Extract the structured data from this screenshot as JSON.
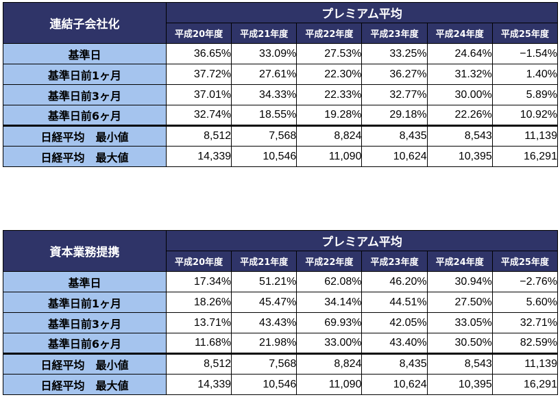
{
  "tables": [
    {
      "corner_label": "連結子会社化",
      "group_header": "プレミアム平均",
      "years": [
        "平成20年度",
        "平成21年度",
        "平成22年度",
        "平成23年度",
        "平成24年度",
        "平成25年度"
      ],
      "rows": [
        {
          "label": "基準日",
          "values": [
            "36.65%",
            "33.09%",
            "27.53%",
            "33.25%",
            "24.64%",
            "−1.54%"
          ]
        },
        {
          "label": "基準日前1ヶ月",
          "values": [
            "37.72%",
            "27.61%",
            "22.30%",
            "36.27%",
            "31.32%",
            "1.40%"
          ]
        },
        {
          "label": "基準日前3ヶ月",
          "values": [
            "37.01%",
            "34.33%",
            "22.33%",
            "32.77%",
            "30.00%",
            "5.89%"
          ]
        },
        {
          "label": "基準日前6ヶ月",
          "values": [
            "32.74%",
            "18.55%",
            "19.28%",
            "29.18%",
            "22.26%",
            "10.92%"
          ]
        },
        {
          "label": "日経平均　最小値",
          "values": [
            "8,512",
            "7,568",
            "8,824",
            "8,435",
            "8,543",
            "11,139"
          ]
        },
        {
          "label": "日経平均　最大値",
          "values": [
            "14,339",
            "10,546",
            "11,090",
            "10,624",
            "10,395",
            "16,291"
          ]
        }
      ]
    },
    {
      "corner_label": "資本業務提携",
      "group_header": "プレミアム平均",
      "years": [
        "平成20年度",
        "平成21年度",
        "平成22年度",
        "平成23年度",
        "平成24年度",
        "平成25年度"
      ],
      "rows": [
        {
          "label": "基準日",
          "values": [
            "17.34%",
            "51.21%",
            "62.08%",
            "46.20%",
            "30.94%",
            "−2.76%"
          ]
        },
        {
          "label": "基準日前1ヶ月",
          "values": [
            "18.26%",
            "45.47%",
            "34.14%",
            "44.51%",
            "27.50%",
            "5.60%"
          ]
        },
        {
          "label": "基準日前3ヶ月",
          "values": [
            "13.71%",
            "43.43%",
            "69.93%",
            "42.05%",
            "33.05%",
            "32.71%"
          ]
        },
        {
          "label": "基準日前6ヶ月",
          "values": [
            "11.68%",
            "21.98%",
            "33.00%",
            "43.40%",
            "30.50%",
            "82.59%"
          ]
        },
        {
          "label": "日経平均　最小値",
          "values": [
            "8,512",
            "7,568",
            "8,824",
            "8,435",
            "8,543",
            "11,139"
          ]
        },
        {
          "label": "日経平均　最大値",
          "values": [
            "14,339",
            "10,546",
            "11,090",
            "10,624",
            "10,395",
            "16,291"
          ]
        }
      ]
    }
  ]
}
